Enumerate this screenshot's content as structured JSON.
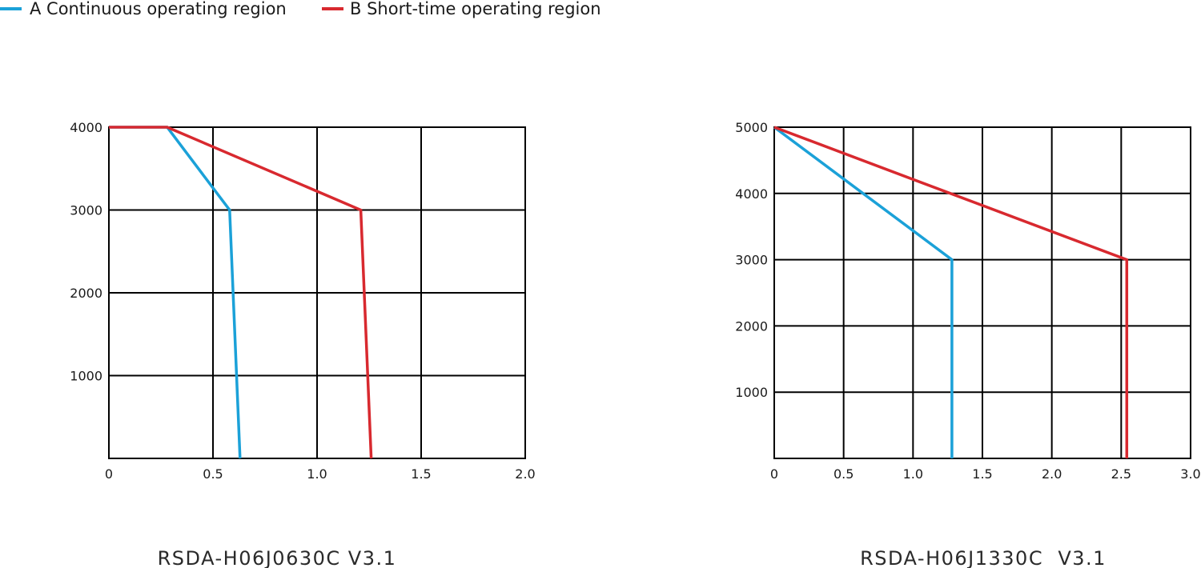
{
  "legend": {
    "placement": "top-left",
    "items": [
      {
        "label": "A Continuous operating region",
        "color": "#1ba1d8"
      },
      {
        "label": "B Short-time operating region",
        "color": "#d8292f"
      }
    ]
  },
  "chart_data": [
    {
      "type": "line",
      "caption": "RSDA-H06J0630C V3.1",
      "xlabel": "",
      "ylabel": "",
      "xlim": [
        0,
        2.0
      ],
      "ylim": [
        0,
        4000
      ],
      "x_ticks": [
        "0",
        "0.5",
        "1.0",
        "1.5",
        "2.0"
      ],
      "x_tick_values": [
        0,
        0.5,
        1.0,
        1.5,
        2.0
      ],
      "y_ticks": [
        "1000",
        "2000",
        "3000",
        "4000"
      ],
      "y_tick_values": [
        1000,
        2000,
        3000,
        4000
      ],
      "grid": true,
      "series": [
        {
          "name": "A Continuous operating region",
          "color": "#1ba1d8",
          "points": [
            [
              0,
              4000
            ],
            [
              0.28,
              4000
            ],
            [
              0.58,
              3000
            ],
            [
              0.63,
              0
            ]
          ]
        },
        {
          "name": "B Short-time operating region",
          "color": "#d8292f",
          "points": [
            [
              0,
              4000
            ],
            [
              0.28,
              4000
            ],
            [
              1.21,
              3000
            ],
            [
              1.26,
              0
            ]
          ]
        }
      ]
    },
    {
      "type": "line",
      "caption": "RSDA-H06J1330C  V3.1",
      "xlabel": "",
      "ylabel": "",
      "xlim": [
        0,
        3.0
      ],
      "ylim": [
        0,
        5000
      ],
      "x_ticks": [
        "0",
        "0.5",
        "1.0",
        "1.5",
        "2.0",
        "2.5",
        "3.0"
      ],
      "x_tick_values": [
        0,
        0.5,
        1.0,
        1.5,
        2.0,
        2.5,
        3.0
      ],
      "y_ticks": [
        "1000",
        "2000",
        "3000",
        "4000",
        "5000"
      ],
      "y_tick_values": [
        1000,
        2000,
        3000,
        4000,
        5000
      ],
      "grid": true,
      "series": [
        {
          "name": "A Continuous operating region",
          "color": "#1ba1d8",
          "points": [
            [
              0,
              5000
            ],
            [
              1.28,
              3000
            ],
            [
              1.28,
              0
            ]
          ]
        },
        {
          "name": "B Short-time operating region",
          "color": "#d8292f",
          "points": [
            [
              0,
              5000
            ],
            [
              2.54,
              3000
            ],
            [
              2.54,
              0
            ]
          ]
        }
      ]
    }
  ]
}
